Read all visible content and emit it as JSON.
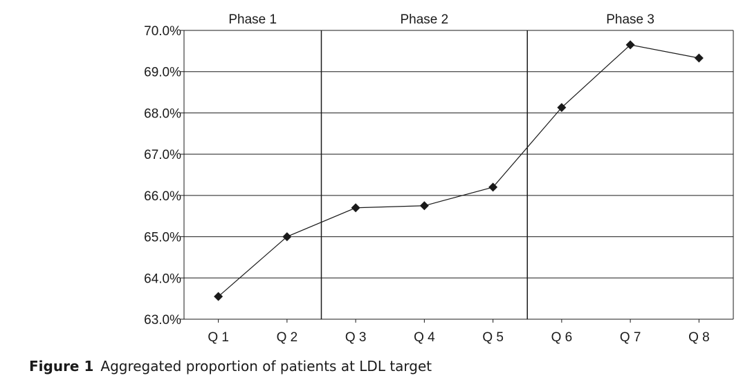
{
  "chart_data": {
    "type": "line",
    "categories": [
      "Q 1",
      "Q 2",
      "Q 3",
      "Q 4",
      "Q 5",
      "Q 6",
      "Q 7",
      "Q 8"
    ],
    "series": [
      {
        "name": "Aggregated proportion of patients at LDL target",
        "values": [
          63.55,
          65.0,
          65.7,
          65.75,
          66.2,
          68.13,
          69.65,
          69.33
        ]
      }
    ],
    "ylim": [
      63.0,
      70.0
    ],
    "yticks": [
      63.0,
      64.0,
      65.0,
      66.0,
      67.0,
      68.0,
      69.0,
      70.0
    ],
    "ytick_format": "percent_1dp",
    "phases": [
      {
        "label": "Phase 1",
        "categories": [
          "Q 1",
          "Q 2"
        ]
      },
      {
        "label": "Phase 2",
        "categories": [
          "Q 3",
          "Q 4",
          "Q 5"
        ]
      },
      {
        "label": "Phase 3",
        "categories": [
          "Q 6",
          "Q 7",
          "Q 8"
        ]
      }
    ],
    "marker": "diamond",
    "grid": true,
    "colors": {
      "line": "#1a1a1a",
      "marker": "#1a1a1a",
      "grid": "#1a1a1a"
    }
  },
  "caption": {
    "label": "Figure 1",
    "text": "Aggregated proportion of patients at LDL target"
  }
}
